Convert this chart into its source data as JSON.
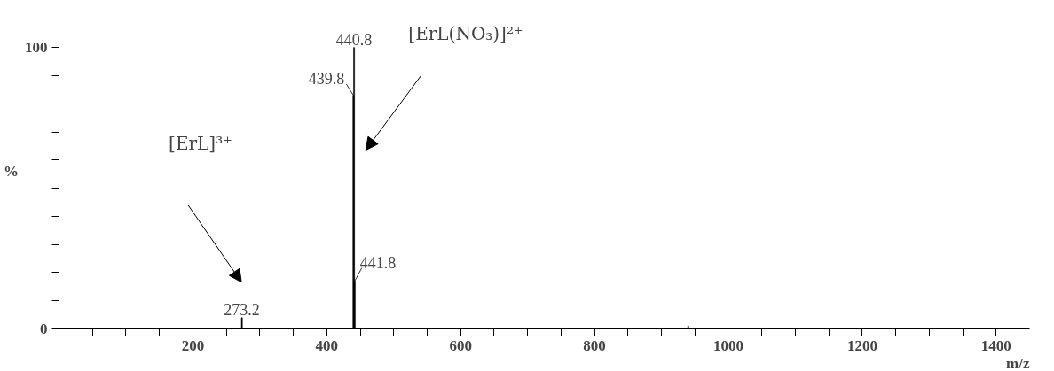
{
  "chart_data": {
    "type": "bar",
    "xlabel": "m/z",
    "ylabel": "%",
    "x": [
      273.2,
      439.8,
      440.8,
      441.8,
      940
    ],
    "series": [
      {
        "color": "#000000",
        "values": [
          4,
          83,
          100,
          17,
          1
        ]
      }
    ],
    "xlim": [
      0,
      1450
    ],
    "xticks": [
      {
        "value": 50,
        "label": null
      },
      {
        "value": 100,
        "label": null
      },
      {
        "value": 150,
        "label": null
      },
      200,
      {
        "value": 250,
        "label": null
      },
      {
        "value": 300,
        "label": null
      },
      {
        "value": 350,
        "label": null
      },
      400,
      {
        "value": 450,
        "label": null
      },
      {
        "value": 500,
        "label": null
      },
      {
        "value": 550,
        "label": null
      },
      600,
      {
        "value": 650,
        "label": null
      },
      {
        "value": 700,
        "label": null
      },
      {
        "value": 750,
        "label": null
      },
      800,
      {
        "value": 850,
        "label": null
      },
      {
        "value": 900,
        "label": null
      },
      {
        "value": 950,
        "label": null
      },
      1000,
      {
        "value": 1050,
        "label": null
      },
      {
        "value": 1100,
        "label": null
      },
      {
        "value": 1150,
        "label": null
      },
      1200,
      {
        "value": 1250,
        "label": null
      },
      {
        "value": 1300,
        "label": null
      },
      {
        "value": 1350,
        "label": null
      },
      1400
    ],
    "ylim": [
      0,
      100
    ],
    "yticks": [
      0,
      {
        "value": 10,
        "label": null
      },
      {
        "value": 20,
        "label": null
      },
      {
        "value": 30,
        "label": null
      },
      {
        "value": 40,
        "label": null
      },
      {
        "value": 50,
        "label": null
      },
      {
        "value": 60,
        "label": null
      },
      {
        "value": 70,
        "label": null
      },
      {
        "value": 80,
        "label": null
      },
      {
        "value": 90,
        "label": null
      },
      100
    ],
    "annotations": [
      {
        "text": "273.2",
        "x": 273.2,
        "y": 4
      },
      {
        "text": "439.8",
        "x": 439.8,
        "y": 83
      },
      {
        "text": "440.8",
        "x": 440.8,
        "y": 100
      },
      {
        "text": "441.8",
        "x": 441.8,
        "y": 17
      },
      "[ErL]³⁺",
      "[ErL(NO₃)]²⁺"
    ],
    "grid": false
  }
}
